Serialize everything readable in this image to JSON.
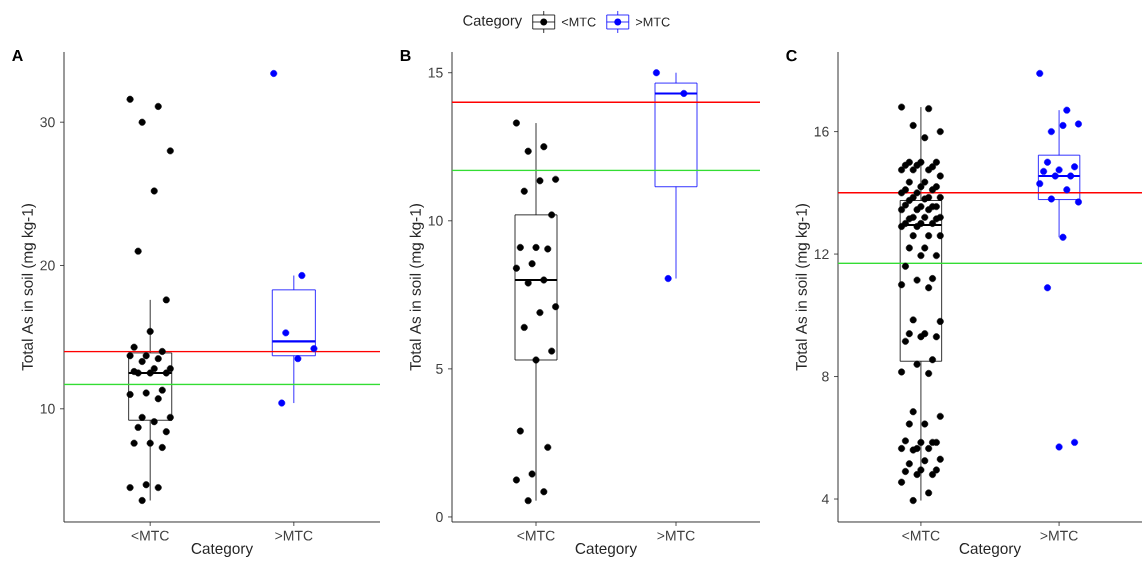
{
  "chart_data": [
    {
      "type": "box",
      "title": "A",
      "xlabel": "Category",
      "ylabel": "Total As in soil (mg kg-1)",
      "categories": [
        "<MTC",
        ">MTC"
      ],
      "ylim": [
        2.1,
        34.9
      ],
      "yticks": [
        10,
        20,
        30
      ],
      "marker": "circle",
      "colors": [
        "#000000",
        "#0000ff"
      ],
      "boxes": [
        {
          "low": 3.6,
          "q1": 9.2,
          "median": 12.5,
          "q3": 13.9,
          "high": 17.6
        },
        {
          "low": 10.4,
          "q1": 13.7,
          "median": 14.7,
          "q3": 18.3,
          "high": 19.3
        }
      ],
      "series": [
        {
          "type": "scatter",
          "color": "#000000",
          "x": [
            "<MTC",
            "<MTC",
            "<MTC",
            "<MTC",
            "<MTC",
            "<MTC",
            "<MTC",
            "<MTC",
            "<MTC",
            "<MTC",
            "<MTC",
            "<MTC",
            "<MTC",
            "<MTC",
            "<MTC",
            "<MTC",
            "<MTC",
            "<MTC",
            "<MTC",
            "<MTC",
            "<MTC",
            "<MTC",
            "<MTC",
            "<MTC",
            "<MTC",
            "<MTC",
            "<MTC",
            "<MTC",
            "<MTC",
            "<MTC",
            "<MTC",
            "<MTC",
            "<MTC",
            "<MTC",
            "<MTC",
            "<MTC"
          ],
          "values": [
            31.6,
            31.1,
            30.0,
            28.0,
            25.2,
            21.0,
            17.6,
            15.4,
            14.3,
            14.0,
            13.7,
            13.7,
            13.5,
            13.3,
            12.8,
            12.8,
            12.5,
            12.5,
            12.5,
            12.6,
            11.3,
            11.1,
            11.0,
            10.7,
            9.4,
            9.4,
            9.1,
            8.7,
            8.4,
            7.6,
            7.6,
            7.3,
            4.7,
            4.5,
            4.5,
            3.6
          ]
        },
        {
          "type": "scatter",
          "color": "#0000ff",
          "x": [
            ">MTC",
            ">MTC",
            ">MTC",
            ">MTC",
            ">MTC",
            ">MTC"
          ],
          "values": [
            33.4,
            19.3,
            15.3,
            14.2,
            13.5,
            10.4
          ]
        }
      ],
      "ref_lines": [
        {
          "axis": "y",
          "value": 14.0,
          "color": "#ff0000"
        },
        {
          "axis": "y",
          "value": 11.7,
          "color": "#33dd33"
        }
      ]
    },
    {
      "type": "box",
      "title": "B",
      "xlabel": "Category",
      "ylabel": "Total As in soil (mg kg-1)",
      "categories": [
        "<MTC",
        ">MTC"
      ],
      "ylim": [
        -0.17,
        15.7
      ],
      "yticks": [
        0,
        5,
        10,
        15
      ],
      "marker": "circle",
      "legend": "top",
      "legend_title": "Category",
      "colors": [
        "#000000",
        "#0000ff"
      ],
      "boxes": [
        {
          "low": 0.55,
          "q1": 5.3,
          "median": 8.0,
          "q3": 10.2,
          "high": 13.3
        },
        {
          "low": 8.05,
          "q1": 11.15,
          "median": 14.3,
          "q3": 14.65,
          "high": 15.0
        }
      ],
      "series": [
        {
          "type": "scatter",
          "name": "<MTC",
          "color": "#000000",
          "x": [
            "<MTC",
            "<MTC",
            "<MTC",
            "<MTC",
            "<MTC",
            "<MTC",
            "<MTC",
            "<MTC",
            "<MTC",
            "<MTC",
            "<MTC",
            "<MTC",
            "<MTC",
            "<MTC",
            "<MTC",
            "<MTC",
            "<MTC",
            "<MTC",
            "<MTC",
            "<MTC",
            "<MTC",
            "<MTC",
            "<MTC",
            "<MTC",
            "<MTC"
          ],
          "values": [
            13.3,
            12.5,
            12.35,
            11.4,
            11.35,
            11.0,
            10.2,
            9.1,
            9.1,
            9.05,
            8.55,
            8.4,
            8.0,
            7.9,
            7.1,
            6.9,
            6.4,
            5.6,
            5.3,
            2.9,
            2.35,
            1.45,
            1.25,
            0.85,
            0.55
          ]
        },
        {
          "type": "scatter",
          "name": ">MTC",
          "color": "#0000ff",
          "x": [
            ">MTC",
            ">MTC",
            ">MTC"
          ],
          "values": [
            15.0,
            14.3,
            8.05
          ]
        }
      ],
      "ref_lines": [
        {
          "axis": "y",
          "value": 14.0,
          "color": "#ff0000"
        },
        {
          "axis": "y",
          "value": 11.7,
          "color": "#33dd33"
        }
      ]
    },
    {
      "type": "box",
      "title": "C",
      "xlabel": "Category",
      "ylabel": "Total As in soil (mg kg-1)",
      "categories": [
        "<MTC",
        ">MTC"
      ],
      "ylim": [
        3.25,
        18.6
      ],
      "yticks": [
        4,
        8,
        12,
        16
      ],
      "marker": "circle",
      "colors": [
        "#000000",
        "#0000ff"
      ],
      "boxes": [
        {
          "low": 3.95,
          "q1": 8.5,
          "median": 12.95,
          "q3": 13.75,
          "high": 16.8
        },
        {
          "low": 12.55,
          "q1": 13.78,
          "median": 14.55,
          "q3": 15.23,
          "high": 16.7
        }
      ],
      "series": [
        {
          "type": "scatter",
          "color": "#000000",
          "x": [
            "<MTC",
            "<MTC",
            "<MTC",
            "<MTC",
            "<MTC",
            "<MTC",
            "<MTC",
            "<MTC",
            "<MTC",
            "<MTC",
            "<MTC",
            "<MTC",
            "<MTC",
            "<MTC",
            "<MTC",
            "<MTC",
            "<MTC",
            "<MTC",
            "<MTC",
            "<MTC",
            "<MTC",
            "<MTC",
            "<MTC",
            "<MTC",
            "<MTC",
            "<MTC",
            "<MTC",
            "<MTC",
            "<MTC",
            "<MTC",
            "<MTC",
            "<MTC",
            "<MTC",
            "<MTC",
            "<MTC",
            "<MTC",
            "<MTC",
            "<MTC",
            "<MTC",
            "<MTC",
            "<MTC",
            "<MTC",
            "<MTC",
            "<MTC",
            "<MTC",
            "<MTC",
            "<MTC",
            "<MTC",
            "<MTC",
            "<MTC",
            "<MTC",
            "<MTC",
            "<MTC",
            "<MTC",
            "<MTC",
            "<MTC",
            "<MTC",
            "<MTC",
            "<MTC",
            "<MTC",
            "<MTC",
            "<MTC",
            "<MTC",
            "<MTC",
            "<MTC",
            "<MTC",
            "<MTC",
            "<MTC",
            "<MTC",
            "<MTC",
            "<MTC",
            "<MTC",
            "<MTC",
            "<MTC",
            "<MTC",
            "<MTC",
            "<MTC",
            "<MTC",
            "<MTC",
            "<MTC",
            "<MTC",
            "<MTC",
            "<MTC",
            "<MTC",
            "<MTC",
            "<MTC",
            "<MTC",
            "<MTC",
            "<MTC",
            "<MTC",
            "<MTC"
          ],
          "values": [
            16.8,
            16.75,
            16.2,
            16.0,
            15.8,
            15.0,
            15.0,
            15.0,
            14.9,
            14.85,
            14.9,
            14.75,
            14.75,
            14.75,
            14.55,
            14.35,
            14.35,
            14.2,
            14.2,
            14.1,
            14.1,
            14.0,
            14.0,
            13.85,
            13.85,
            13.85,
            13.8,
            13.75,
            13.55,
            13.55,
            13.6,
            13.55,
            13.45,
            13.45,
            13.45,
            13.2,
            13.2,
            13.2,
            13.15,
            13.15,
            13.0,
            13.0,
            13.0,
            12.9,
            12.9,
            12.6,
            12.6,
            12.6,
            12.2,
            12.2,
            11.95,
            11.95,
            11.6,
            11.2,
            11.15,
            11.0,
            10.9,
            9.85,
            9.8,
            9.4,
            9.4,
            9.3,
            9.3,
            9.15,
            8.55,
            8.4,
            8.15,
            8.1,
            6.85,
            6.7,
            6.45,
            6.45,
            5.85,
            5.85,
            5.9,
            5.85,
            5.65,
            5.65,
            5.65,
            5.6,
            5.3,
            5.25,
            5.15,
            4.95,
            4.95,
            4.9,
            4.8,
            4.8,
            4.55,
            4.2,
            3.95
          ]
        },
        {
          "type": "scatter",
          "color": "#0000ff",
          "x": [
            ">MTC",
            ">MTC",
            ">MTC",
            ">MTC",
            ">MTC",
            ">MTC",
            ">MTC",
            ">MTC",
            ">MTC",
            ">MTC",
            ">MTC",
            ">MTC",
            ">MTC",
            ">MTC",
            ">MTC",
            ">MTC",
            ">MTC",
            ">MTC",
            ">MTC"
          ],
          "values": [
            17.9,
            16.7,
            16.0,
            16.25,
            16.2,
            15.0,
            14.85,
            14.75,
            14.7,
            14.55,
            14.55,
            14.3,
            14.1,
            13.8,
            13.7,
            12.55,
            10.9,
            5.85,
            5.7
          ]
        }
      ],
      "ref_lines": [
        {
          "axis": "y",
          "value": 14.0,
          "color": "#ff0000"
        },
        {
          "axis": "y",
          "value": 11.7,
          "color": "#33dd33"
        }
      ]
    }
  ]
}
